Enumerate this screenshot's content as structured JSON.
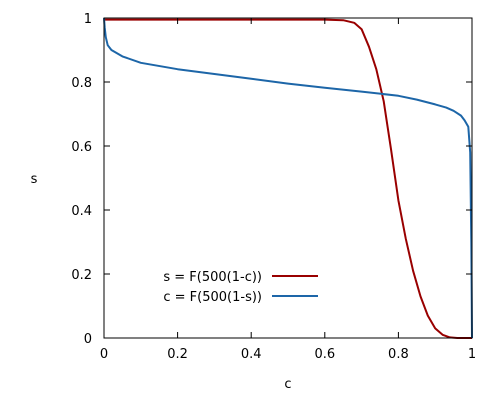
{
  "chart_data": {
    "type": "line",
    "title": "",
    "xlabel": "c",
    "ylabel": "s",
    "xlim": [
      0,
      1
    ],
    "ylim": [
      0,
      1
    ],
    "xticks": [
      0,
      0.2,
      0.4,
      0.6,
      0.8,
      1
    ],
    "yticks": [
      0,
      0.2,
      0.4,
      0.6,
      0.8,
      1
    ],
    "xtick_labels": [
      "0",
      "0.2",
      "0.4",
      "0.6",
      "0.8",
      "1"
    ],
    "ytick_labels": [
      "0",
      "0.2",
      "0.4",
      "0.6",
      "0.8",
      "1"
    ],
    "grid": false,
    "legend_position": "bottom-left",
    "series": [
      {
        "name": "s = F(500(1-c))",
        "color": "#990000",
        "x": [
          0,
          0.6,
          0.65,
          0.68,
          0.7,
          0.72,
          0.74,
          0.76,
          0.78,
          0.8,
          0.82,
          0.84,
          0.86,
          0.88,
          0.9,
          0.92,
          0.94,
          0.96,
          1.0
        ],
        "y": [
          0.995,
          0.995,
          0.993,
          0.985,
          0.965,
          0.91,
          0.84,
          0.74,
          0.59,
          0.43,
          0.31,
          0.21,
          0.13,
          0.07,
          0.03,
          0.01,
          0.002,
          0.0,
          0.0
        ]
      },
      {
        "name": "c = F(500(1-s))",
        "color": "#1d66a8",
        "x": [
          0,
          0.002,
          0.005,
          0.01,
          0.02,
          0.05,
          0.1,
          0.2,
          0.3,
          0.4,
          0.5,
          0.6,
          0.7,
          0.8,
          0.85,
          0.9,
          0.93,
          0.95,
          0.97,
          0.98,
          0.99,
          0.995,
          0.998,
          1.0
        ],
        "y": [
          1.0,
          0.97,
          0.94,
          0.915,
          0.9,
          0.88,
          0.86,
          0.84,
          0.825,
          0.81,
          0.795,
          0.782,
          0.77,
          0.757,
          0.745,
          0.73,
          0.72,
          0.71,
          0.695,
          0.68,
          0.66,
          0.58,
          0.3,
          0.0
        ]
      }
    ]
  }
}
